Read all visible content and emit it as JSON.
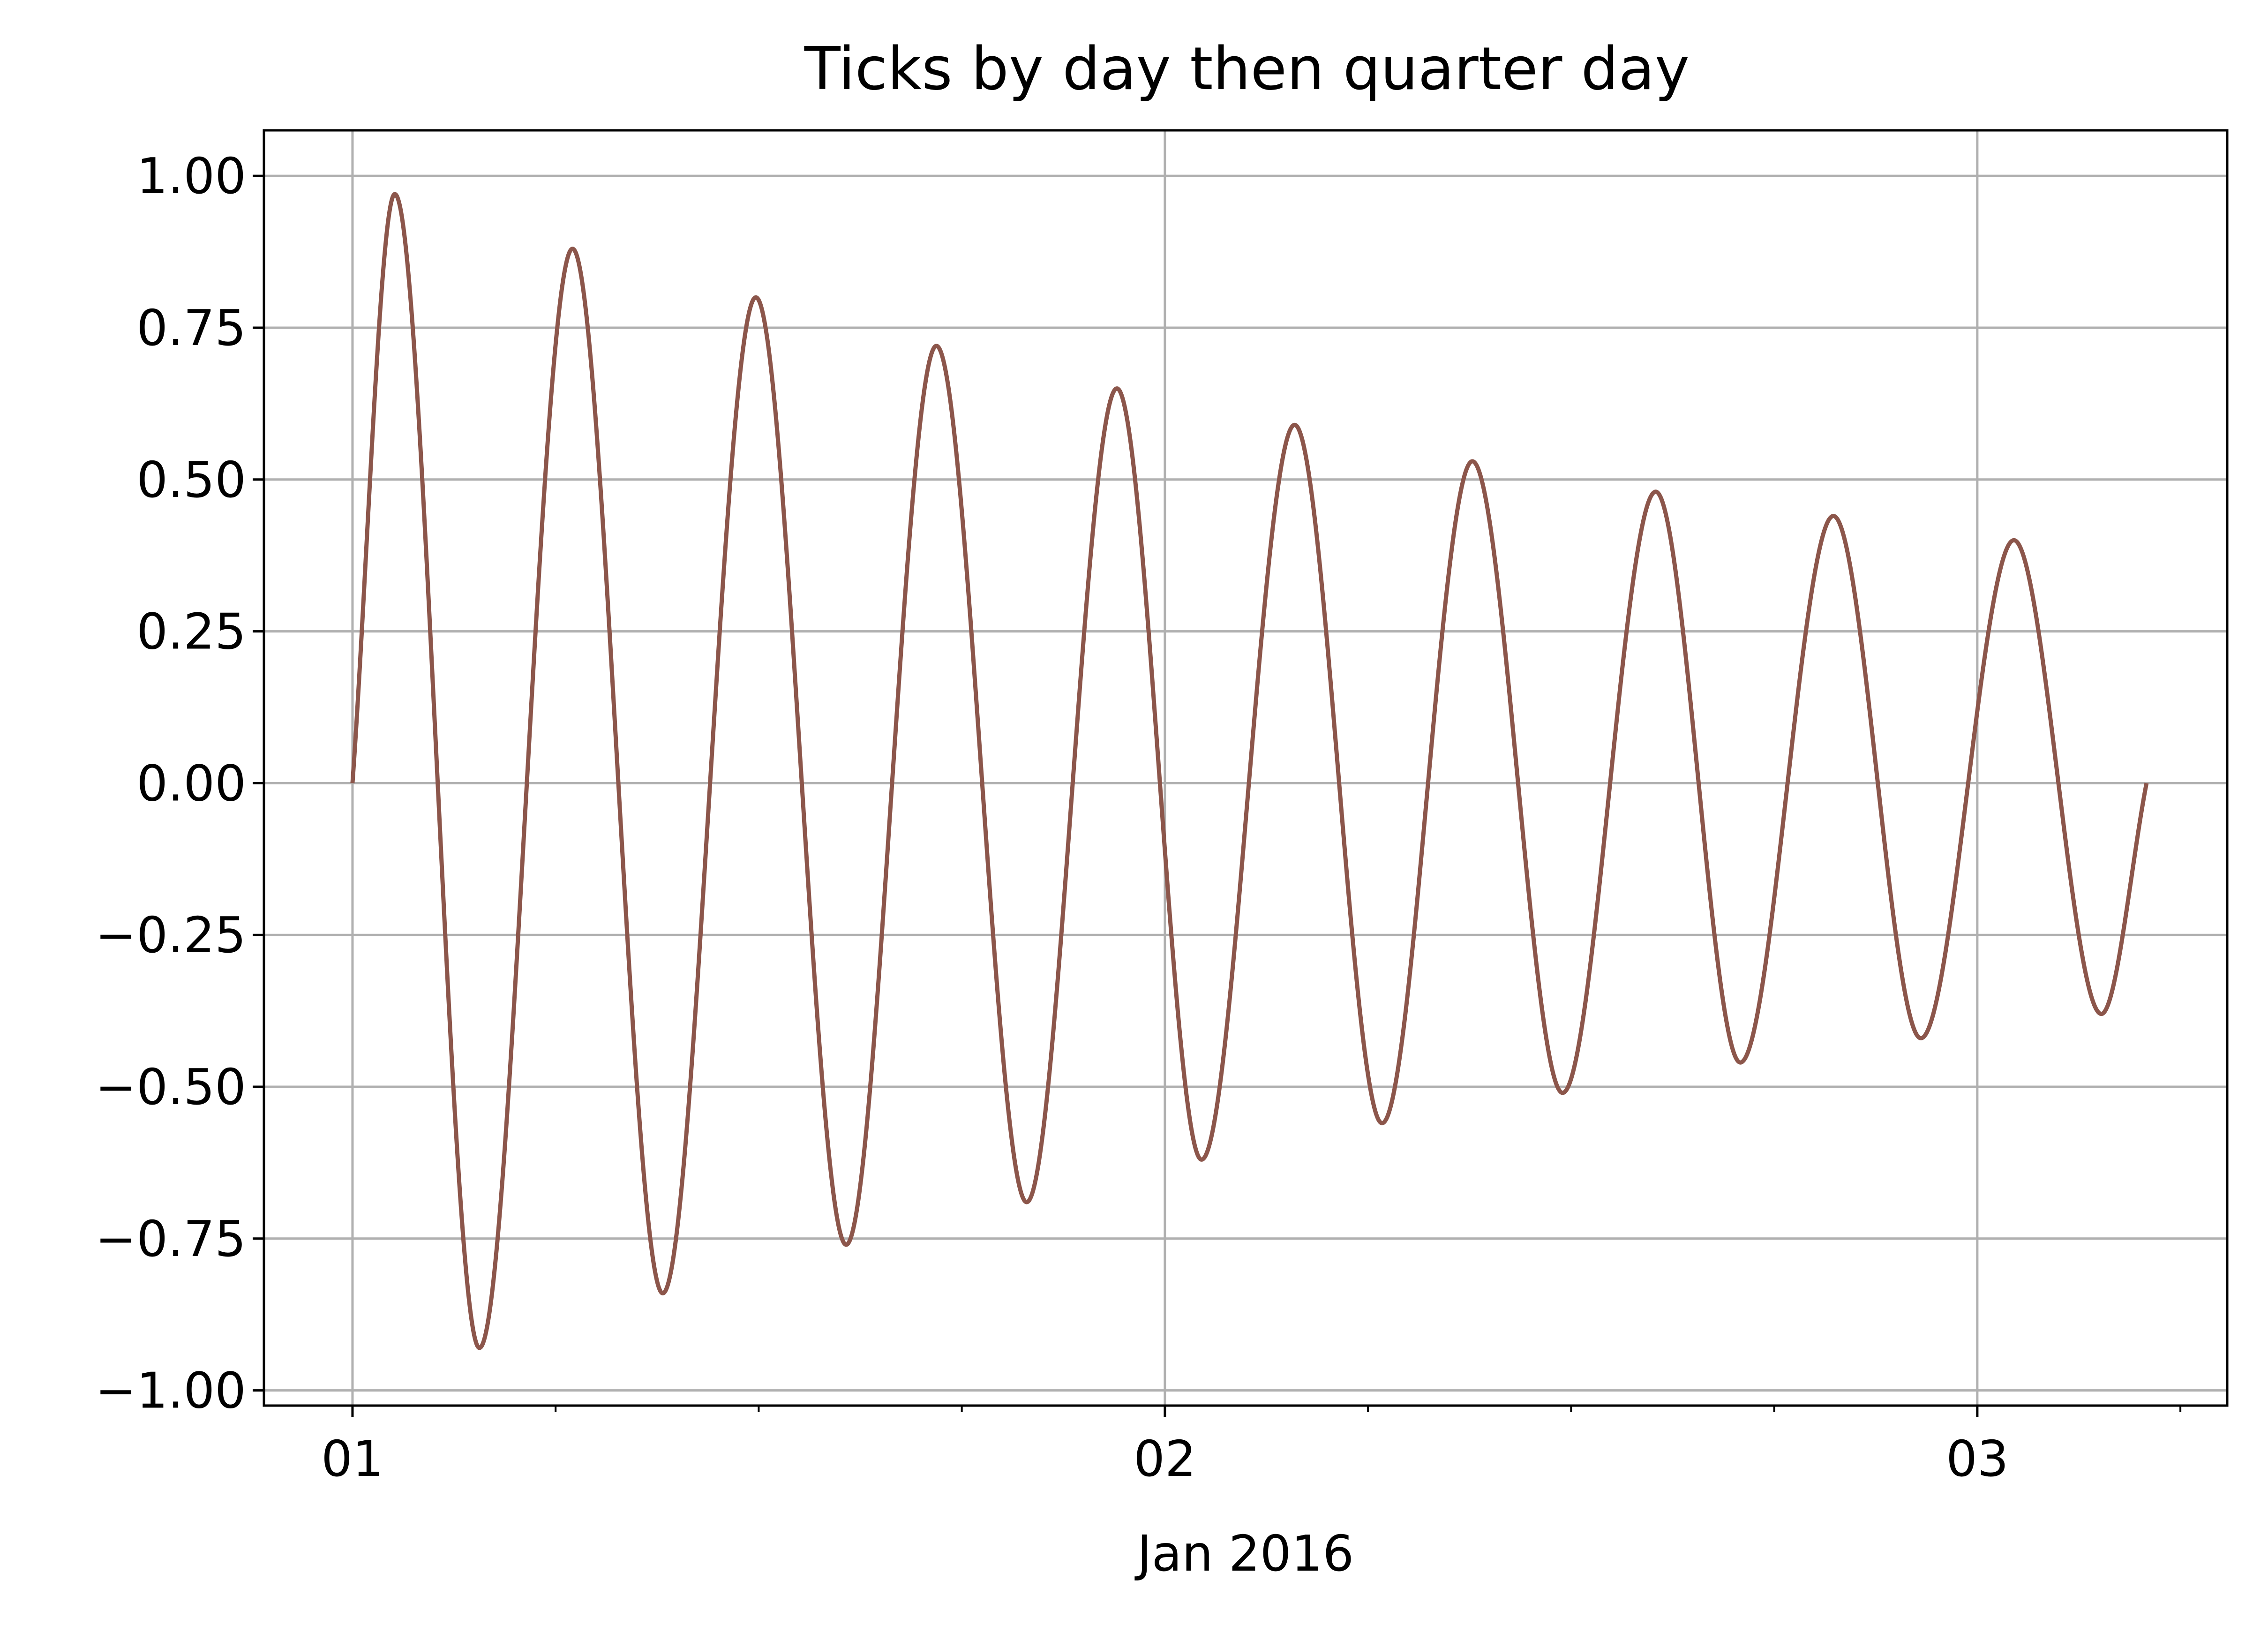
{
  "chart_data": {
    "type": "line",
    "title": "Ticks by day then quarter day",
    "xlabel": "Jan 2016",
    "ylabel": "",
    "x_start": "2016-01-01T00:00",
    "x_end": "2016-01-03T05:00",
    "xlim": [
      "2016-01-00T21:23",
      "2016-01-03T07:23"
    ],
    "ylim": [
      -1.025,
      1.075
    ],
    "x_major_ticks": [
      {
        "x": "2016-01-01T00:00",
        "label": "01"
      },
      {
        "x": "2016-01-02T00:00",
        "label": "02"
      },
      {
        "x": "2016-01-03T00:00",
        "label": "03"
      }
    ],
    "x_minor_ticks": [
      "2016-01-01T06:00",
      "2016-01-01T12:00",
      "2016-01-01T18:00",
      "2016-01-02T06:00",
      "2016-01-02T12:00",
      "2016-01-02T18:00",
      "2016-01-03T06:00"
    ],
    "y_ticks": [
      -1.0,
      -0.75,
      -0.5,
      -0.25,
      0.0,
      0.25,
      0.5,
      0.75,
      1.0
    ],
    "y_tick_labels": [
      "−1.00",
      "−0.75",
      "−0.50",
      "−0.25",
      "0.00",
      "0.25",
      "0.50",
      "0.75",
      "1.00"
    ],
    "grid": true,
    "series": [
      {
        "color": "#8c564b",
        "points": [
          {
            "x": "2016-01-01T00:00",
            "y": 0.0
          },
          {
            "x": "2016-01-01T01:15",
            "y": 0.97
          },
          {
            "x": "2016-01-01T03:45",
            "y": -0.93
          },
          {
            "x": "2016-01-01T06:30",
            "y": 0.88
          },
          {
            "x": "2016-01-01T09:10",
            "y": -0.84
          },
          {
            "x": "2016-01-01T11:55",
            "y": 0.8
          },
          {
            "x": "2016-01-01T14:35",
            "y": -0.76
          },
          {
            "x": "2016-01-01T17:15",
            "y": 0.72
          },
          {
            "x": "2016-01-01T19:55",
            "y": -0.69
          },
          {
            "x": "2016-01-01T22:35",
            "y": 0.65
          },
          {
            "x": "2016-01-02T01:05",
            "y": -0.62
          },
          {
            "x": "2016-01-02T03:50",
            "y": 0.59
          },
          {
            "x": "2016-01-02T06:25",
            "y": -0.56
          },
          {
            "x": "2016-01-02T09:05",
            "y": 0.53
          },
          {
            "x": "2016-01-02T11:45",
            "y": -0.51
          },
          {
            "x": "2016-01-02T14:30",
            "y": 0.48
          },
          {
            "x": "2016-01-02T17:00",
            "y": -0.46
          },
          {
            "x": "2016-01-02T19:45",
            "y": 0.44
          },
          {
            "x": "2016-01-02T22:20",
            "y": -0.42
          },
          {
            "x": "2016-01-03T01:05",
            "y": 0.4
          },
          {
            "x": "2016-01-03T03:40",
            "y": -0.38
          },
          {
            "x": "2016-01-03T05:00",
            "y": 0.0
          }
        ]
      }
    ]
  }
}
